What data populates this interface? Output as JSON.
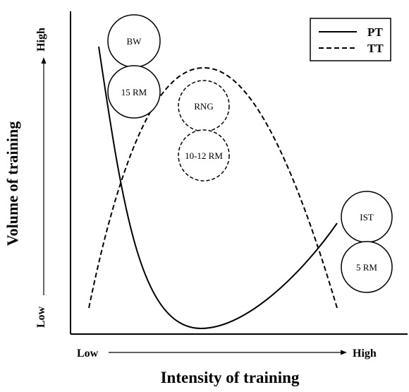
{
  "diagram": {
    "axes": {
      "y_title": "Volume of training",
      "x_title": "Intensity of training",
      "y_low": "Low",
      "y_high": "High",
      "x_low": "Low",
      "x_high": "High"
    },
    "legend": [
      {
        "label": "PT",
        "style": "solid"
      },
      {
        "label": "TT",
        "style": "dashed"
      }
    ],
    "circles": {
      "bw": "BW",
      "rm15": "15 RM",
      "rng": "RNG",
      "rm10_12": "10-12 RM",
      "ist": "IST",
      "rm5": "5 RM"
    }
  }
}
